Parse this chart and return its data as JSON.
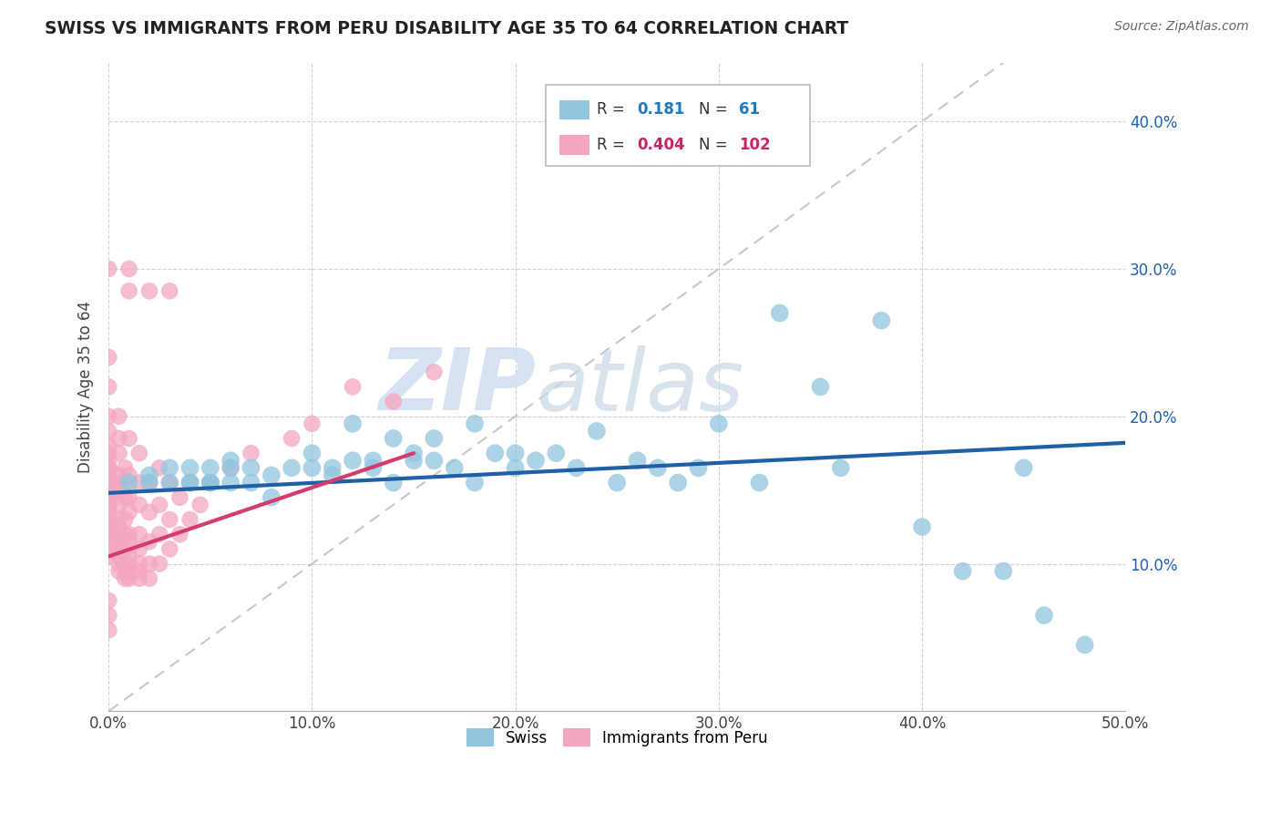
{
  "title": "SWISS VS IMMIGRANTS FROM PERU DISABILITY AGE 35 TO 64 CORRELATION CHART",
  "source": "Source: ZipAtlas.com",
  "ylabel": "Disability Age 35 to 64",
  "xlim": [
    0.0,
    0.5
  ],
  "ylim": [
    0.0,
    0.44
  ],
  "xtick_vals": [
    0.0,
    0.1,
    0.2,
    0.3,
    0.4,
    0.5
  ],
  "xtick_labels": [
    "0.0%",
    "10.0%",
    "20.0%",
    "30.0%",
    "40.0%",
    "50.0%"
  ],
  "right_ytick_vals": [
    0.1,
    0.2,
    0.3,
    0.4
  ],
  "right_ytick_labels": [
    "10.0%",
    "20.0%",
    "30.0%",
    "40.0%"
  ],
  "swiss_R": 0.181,
  "swiss_N": 61,
  "peru_R": 0.404,
  "peru_N": 102,
  "swiss_color": "#92c5de",
  "peru_color": "#f4a6c0",
  "swiss_line_color": "#1f5fa6",
  "peru_line_color": "#d63b6e",
  "background_color": "#ffffff",
  "grid_color": "#cccccc",
  "swiss_x": [
    0.01,
    0.02,
    0.02,
    0.03,
    0.03,
    0.04,
    0.04,
    0.04,
    0.05,
    0.05,
    0.05,
    0.05,
    0.06,
    0.06,
    0.07,
    0.07,
    0.08,
    0.09,
    0.1,
    0.1,
    0.11,
    0.12,
    0.13,
    0.13,
    0.14,
    0.15,
    0.15,
    0.16,
    0.17,
    0.18,
    0.19,
    0.2,
    0.2,
    0.21,
    0.22,
    0.23,
    0.24,
    0.25,
    0.26,
    0.27,
    0.28,
    0.29,
    0.3,
    0.32,
    0.33,
    0.35,
    0.36,
    0.38,
    0.4,
    0.42,
    0.44,
    0.45,
    0.46,
    0.48,
    0.18,
    0.16,
    0.14,
    0.12,
    0.11,
    0.08,
    0.06
  ],
  "swiss_y": [
    0.155,
    0.16,
    0.155,
    0.165,
    0.155,
    0.165,
    0.155,
    0.155,
    0.155,
    0.165,
    0.155,
    0.155,
    0.165,
    0.155,
    0.165,
    0.155,
    0.16,
    0.165,
    0.165,
    0.175,
    0.165,
    0.17,
    0.17,
    0.165,
    0.155,
    0.17,
    0.175,
    0.17,
    0.165,
    0.155,
    0.175,
    0.165,
    0.175,
    0.17,
    0.175,
    0.165,
    0.19,
    0.155,
    0.17,
    0.165,
    0.155,
    0.165,
    0.195,
    0.155,
    0.27,
    0.22,
    0.165,
    0.265,
    0.125,
    0.095,
    0.095,
    0.165,
    0.065,
    0.045,
    0.195,
    0.185,
    0.185,
    0.195,
    0.16,
    0.145,
    0.17
  ],
  "peru_x": [
    0.0,
    0.0,
    0.0,
    0.0,
    0.0,
    0.0,
    0.0,
    0.0,
    0.0,
    0.0,
    0.0,
    0.0,
    0.0,
    0.0,
    0.0,
    0.0,
    0.0,
    0.0,
    0.0,
    0.0,
    0.0,
    0.0,
    0.0,
    0.0,
    0.0,
    0.0,
    0.0,
    0.0,
    0.005,
    0.005,
    0.005,
    0.005,
    0.005,
    0.005,
    0.005,
    0.005,
    0.005,
    0.005,
    0.005,
    0.005,
    0.005,
    0.005,
    0.008,
    0.008,
    0.008,
    0.008,
    0.008,
    0.008,
    0.008,
    0.008,
    0.008,
    0.01,
    0.01,
    0.01,
    0.01,
    0.01,
    0.01,
    0.01,
    0.01,
    0.01,
    0.01,
    0.015,
    0.015,
    0.015,
    0.015,
    0.015,
    0.015,
    0.015,
    0.015,
    0.02,
    0.02,
    0.02,
    0.02,
    0.02,
    0.025,
    0.025,
    0.025,
    0.025,
    0.03,
    0.03,
    0.03,
    0.035,
    0.035,
    0.04,
    0.04,
    0.045,
    0.05,
    0.06,
    0.07,
    0.09,
    0.1,
    0.12,
    0.14,
    0.16,
    0.02,
    0.03,
    0.005,
    0.01,
    0.01,
    0.0,
    0.0,
    0.0
  ],
  "peru_y": [
    0.105,
    0.11,
    0.115,
    0.12,
    0.125,
    0.125,
    0.13,
    0.13,
    0.135,
    0.14,
    0.14,
    0.145,
    0.145,
    0.15,
    0.15,
    0.155,
    0.155,
    0.16,
    0.165,
    0.165,
    0.17,
    0.175,
    0.18,
    0.19,
    0.2,
    0.22,
    0.24,
    0.3,
    0.095,
    0.1,
    0.105,
    0.11,
    0.115,
    0.12,
    0.125,
    0.13,
    0.14,
    0.15,
    0.155,
    0.16,
    0.175,
    0.185,
    0.09,
    0.095,
    0.1,
    0.11,
    0.12,
    0.13,
    0.145,
    0.155,
    0.165,
    0.09,
    0.095,
    0.1,
    0.105,
    0.115,
    0.12,
    0.135,
    0.145,
    0.16,
    0.185,
    0.09,
    0.095,
    0.1,
    0.11,
    0.12,
    0.14,
    0.155,
    0.175,
    0.09,
    0.1,
    0.115,
    0.135,
    0.155,
    0.1,
    0.12,
    0.14,
    0.165,
    0.11,
    0.13,
    0.155,
    0.12,
    0.145,
    0.13,
    0.155,
    0.14,
    0.155,
    0.165,
    0.175,
    0.185,
    0.195,
    0.22,
    0.21,
    0.23,
    0.285,
    0.285,
    0.2,
    0.285,
    0.3,
    0.055,
    0.065,
    0.075
  ]
}
